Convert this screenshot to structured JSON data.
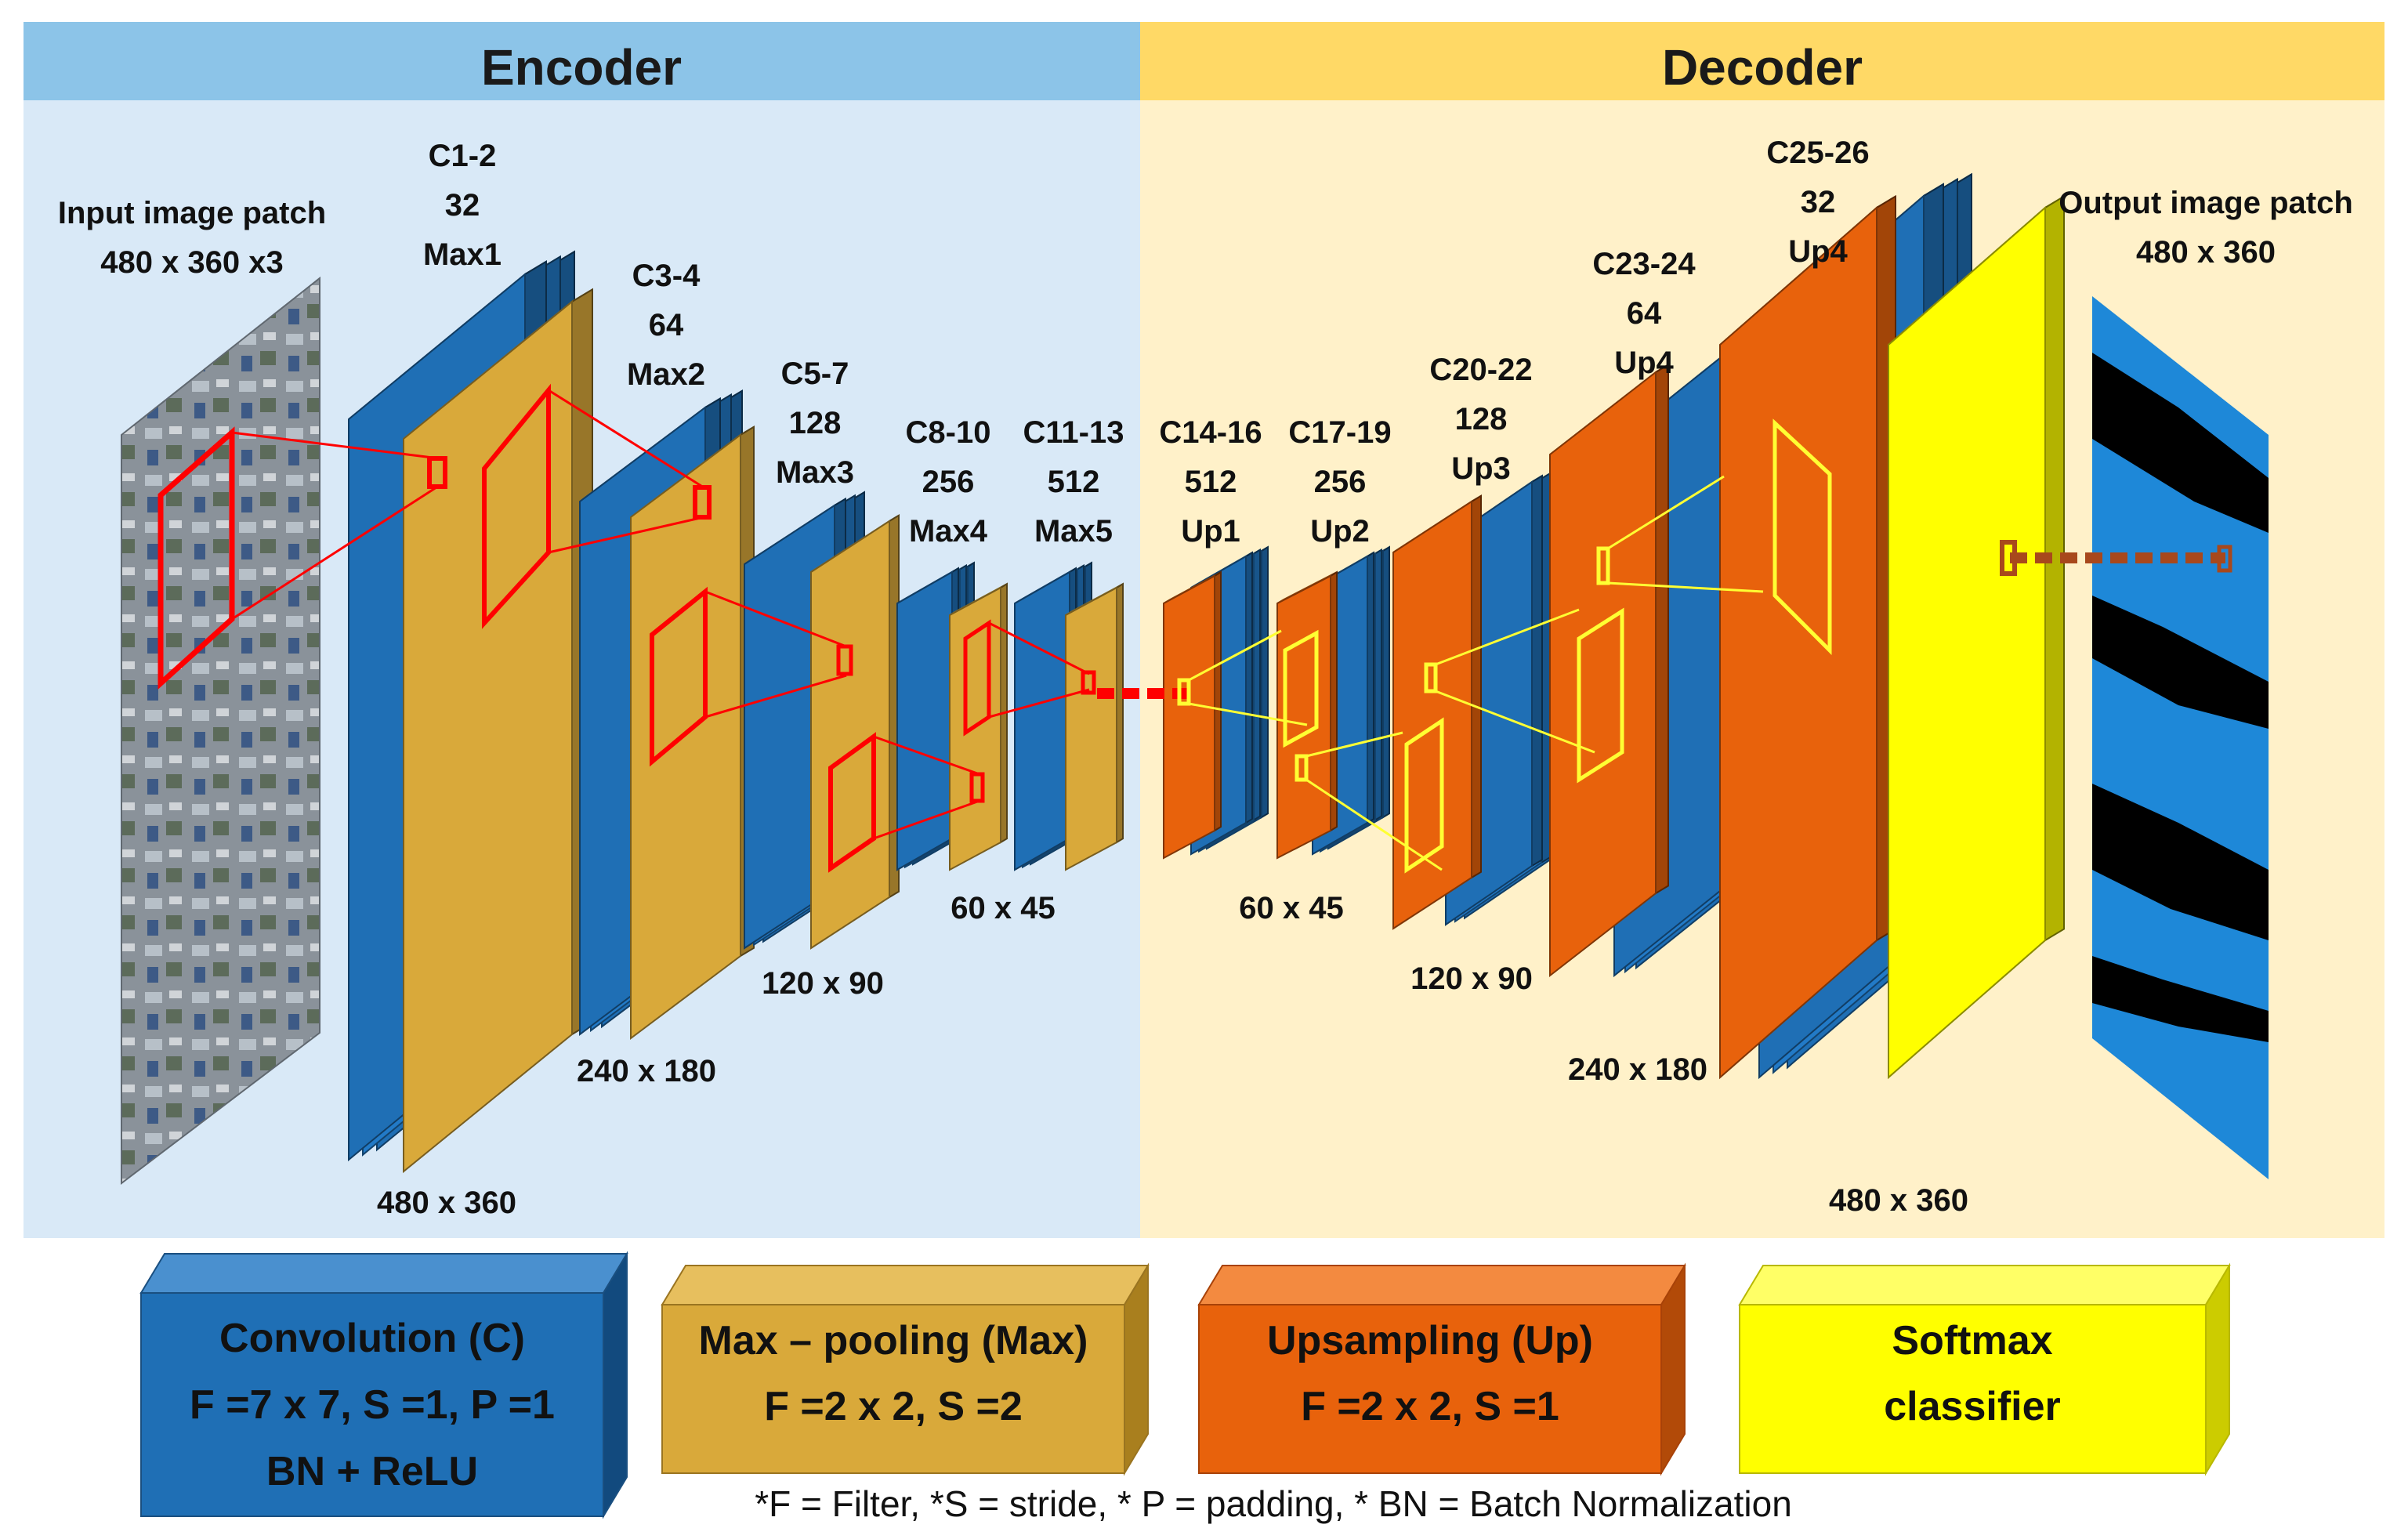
{
  "headers": {
    "encoder": "Encoder",
    "decoder": "Decoder"
  },
  "input": {
    "title": "Input image patch",
    "size": "480 x 360 x3"
  },
  "output": {
    "title": "Output image patch",
    "size": "480 x 360"
  },
  "encoder_blocks": [
    {
      "name": "C1-2",
      "channels": "32",
      "op": "Max1",
      "size": "480 x 360"
    },
    {
      "name": "C3-4",
      "channels": "64",
      "op": "Max2",
      "size": "240 x 180"
    },
    {
      "name": "C5-7",
      "channels": "128",
      "op": "Max3",
      "size": "120 x 90"
    },
    {
      "name": "C8-10",
      "channels": "256",
      "op": "Max4",
      "size": "60 x 45"
    },
    {
      "name": "C11-13",
      "channels": "512",
      "op": "Max5"
    }
  ],
  "decoder_blocks": [
    {
      "name": "C14-16",
      "channels": "512",
      "op": "Up1",
      "size": "60 x 45"
    },
    {
      "name": "C17-19",
      "channels": "256",
      "op": "Up2"
    },
    {
      "name": "C20-22",
      "channels": "128",
      "op": "Up3",
      "size": "120 x 90"
    },
    {
      "name": "C23-24",
      "channels": "64",
      "op": "Up4",
      "size": "240 x 180"
    },
    {
      "name": "C25-26",
      "channels": "32",
      "op": "Up4",
      "size": "480 x 360"
    }
  ],
  "legend": {
    "conv": {
      "line1": "Convolution (C)",
      "line2": "F =7 x 7, S =1, P =1",
      "line3": "BN + ReLU"
    },
    "maxpool": {
      "line1": "Max – pooling (Max)",
      "line2": "F =2 x 2, S =2"
    },
    "upsample": {
      "line1": "Upsampling (Up)",
      "line2": "F =2 x 2, S =1"
    },
    "softmax": {
      "line1": "Softmax",
      "line2": "classifier"
    }
  },
  "footnote": "*F = Filter, *S = stride, * P = padding, * BN = Batch Normalization",
  "colors": {
    "encoder_header": "#8cc4e8",
    "encoder_bg": "#d9e9f7",
    "decoder_header": "#ffd966",
    "decoder_bg": "#fff1c9",
    "conv": "#1f6fb5",
    "maxpool": "#d9a93a",
    "upsample": "#e8620c",
    "softmax": "#ffff00",
    "link_red": "#ff0000",
    "link_yellow": "#ffff33",
    "link_brown": "#a8481c"
  }
}
